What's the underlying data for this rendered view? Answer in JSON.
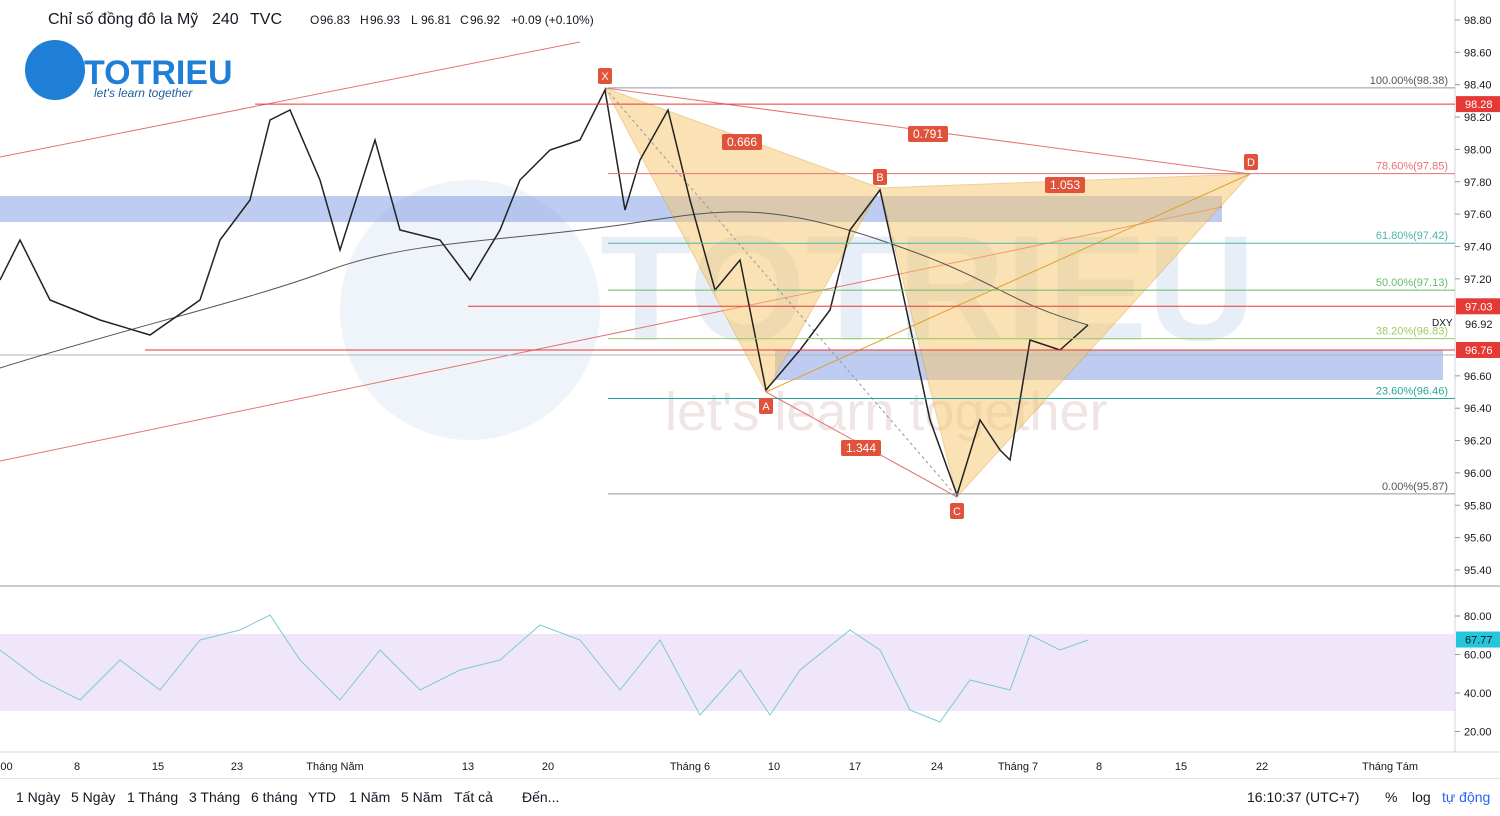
{
  "header": {
    "symbol": "Chỉ số đồng đô la Mỹ",
    "interval": "240",
    "exchange": "TVC",
    "ohlc": [
      {
        "key": "O",
        "value": "96.83"
      },
      {
        "key": "H",
        "value": "96.93"
      },
      {
        "key": "L",
        "value": "96.81"
      },
      {
        "key": "C",
        "value": "96.92"
      }
    ],
    "change": "+0.09 (+0.10%)"
  },
  "logo": {
    "name": "TOTRIEU",
    "tagline": "let's learn together"
  },
  "price_axis": {
    "ticks": [
      "98.80",
      "98.60",
      "98.40",
      "98.20",
      "98.00",
      "97.80",
      "97.60",
      "97.40",
      "97.20",
      "96.60",
      "96.40",
      "96.20",
      "96.00",
      "95.80",
      "95.60",
      "95.40"
    ],
    "price_labels": [
      {
        "value": "98.28",
        "color": "#e53935"
      },
      {
        "value": "97.03",
        "color": "#e53935"
      },
      {
        "value": "96.76",
        "color": "#e53935"
      }
    ],
    "symbol_tag": "DXY",
    "last_price": "96.92"
  },
  "fib_levels": [
    "100.00%(98.38)",
    "78.60%(97.85)",
    "61.80%(97.42)",
    "50.00%(97.13)",
    "38.20%(96.83)",
    "23.60%(96.46)",
    "0.00%(95.87)"
  ],
  "pattern": {
    "points": [
      "X",
      "A",
      "B",
      "C",
      "D"
    ],
    "ratios": [
      "0.666",
      "0.791",
      "1.053",
      "1.344"
    ]
  },
  "rsi_axis": {
    "ticks": [
      "80.00",
      "60.00",
      "40.00",
      "20.00"
    ],
    "current": "67.77"
  },
  "time_axis": [
    ":00",
    "8",
    "15",
    "23",
    "Tháng Năm",
    "13",
    "20",
    "Tháng 6",
    "10",
    "17",
    "24",
    "Tháng 7",
    "8",
    "15",
    "22",
    "Tháng Tám"
  ],
  "toolbar": {
    "ranges": [
      "1 Ngày",
      "5 Ngày",
      "1 Tháng",
      "3 Tháng",
      "6 tháng",
      "YTD",
      "1 Năm",
      "5 Năm",
      "Tất cả"
    ],
    "goto": "Đến...",
    "clock": "16:10:37 (UTC+7)",
    "percent": "%",
    "log": "log",
    "auto": "tự động"
  }
}
